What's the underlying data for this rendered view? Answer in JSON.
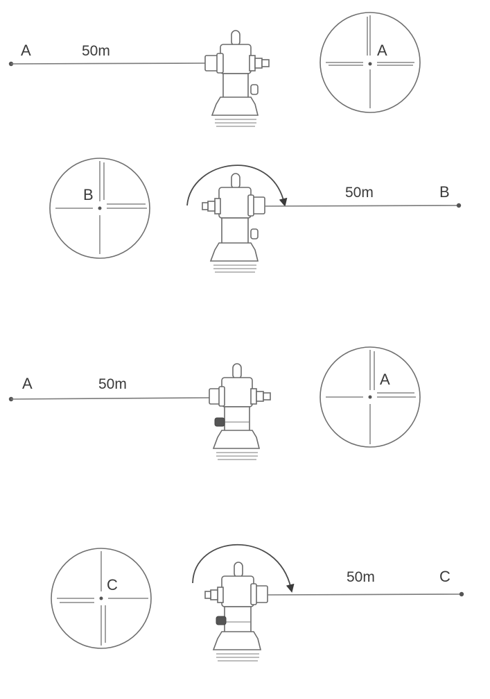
{
  "panels": [
    {
      "target_label": "A",
      "distance_label": "50m",
      "reticle_label": "A",
      "rotated": false
    },
    {
      "target_label": "B",
      "distance_label": "50m",
      "reticle_label": "B",
      "rotated": true
    },
    {
      "target_label": "A",
      "distance_label": "50m",
      "reticle_label": "A",
      "rotated": false
    },
    {
      "target_label": "C",
      "distance_label": "50m",
      "reticle_label": "C",
      "rotated": true
    }
  ]
}
